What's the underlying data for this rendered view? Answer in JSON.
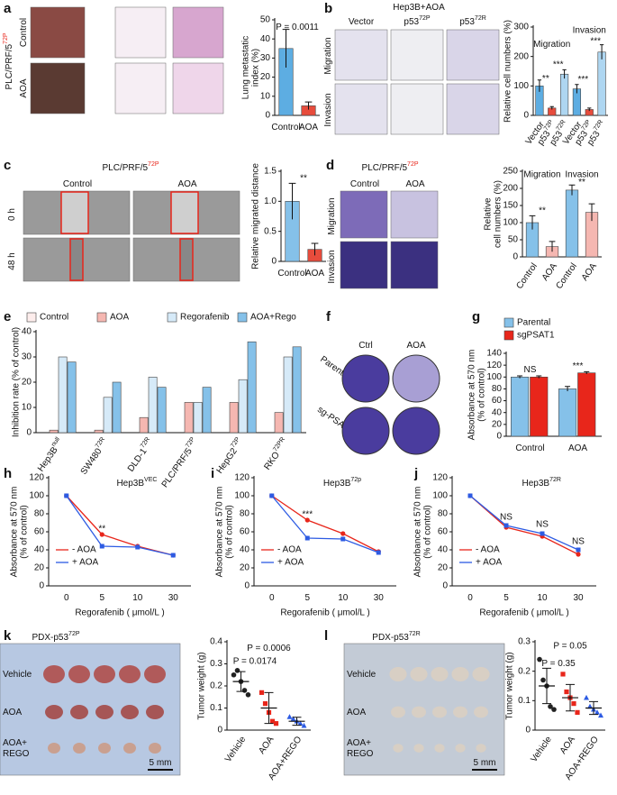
{
  "letters": [
    "a",
    "b",
    "c",
    "d",
    "e",
    "f",
    "g",
    "h",
    "i",
    "j",
    "k",
    "l"
  ],
  "images": {
    "a": {
      "title": "PLC/PRF/5",
      "sup": "72P",
      "rows": [
        "Control",
        "AOA"
      ]
    },
    "b": {
      "title": "Hep3B+AOA",
      "cols": [
        "Vector",
        "p53",
        "p53"
      ],
      "col_sups": [
        null,
        "72P",
        "72R"
      ],
      "rows": [
        "Migration",
        "Invasion"
      ]
    },
    "c": {
      "title": "PLC/PRF/5",
      "sup": "72P",
      "cols": [
        "Control",
        "AOA"
      ],
      "rows": [
        "0 h",
        "48 h"
      ]
    },
    "d": {
      "title": "PLC/PRF/5",
      "sup": "72P",
      "cols": [
        "Control",
        "AOA"
      ],
      "rows": [
        "Migration",
        "Invasion"
      ]
    },
    "f": {
      "cols": [
        "Ctrl",
        "AOA"
      ],
      "rows": [
        "Parental",
        "sg-PSAT1"
      ]
    },
    "k": {
      "title": "PDX-p53",
      "sup": "72P",
      "rows": [
        "Vehicle",
        "AOA",
        "AOA+",
        "REGO"
      ],
      "scale": "5 mm"
    },
    "l": {
      "title": "PDX-p53",
      "sup": "72R",
      "rows": [
        "Vehicle",
        "AOA",
        "AOA+",
        "REGO"
      ],
      "scale": "5 mm"
    }
  },
  "chart_data": [
    {
      "type": "bar",
      "ylabel": [
        "Lung metastatic",
        "index (%)"
      ],
      "categories": [
        "Control",
        "AOA"
      ],
      "values": [
        35,
        5
      ],
      "errors": [
        10,
        2
      ],
      "colors": [
        "#5dade2",
        "#e74c3c"
      ],
      "ylim": [
        0,
        50
      ],
      "yticks": [
        0,
        10,
        20,
        30,
        40,
        50
      ],
      "annotations": [
        "P = 0.0011"
      ]
    },
    {
      "type": "bar",
      "ylabel": [
        "Relative cell numbers (%)"
      ],
      "categories": [
        "Vector",
        "p53",
        "p53",
        "Vector",
        "p53",
        "p53"
      ],
      "category_sups": [
        null,
        "72P",
        "72R",
        null,
        "72P",
        "72R"
      ],
      "values": [
        100,
        25,
        140,
        90,
        20,
        215
      ],
      "errors": [
        20,
        5,
        15,
        15,
        5,
        25
      ],
      "colors": [
        "#5dade2",
        "#e74c3c",
        "#aed6f1",
        "#5dade2",
        "#e74c3c",
        "#aed6f1"
      ],
      "ylim": [
        0,
        300
      ],
      "yticks": [
        0,
        100,
        200,
        300
      ],
      "annotations": [
        "Migration",
        "Invasion",
        "**",
        "***",
        "***",
        "***"
      ]
    },
    {
      "type": "bar",
      "ylabel": [
        "Relative migrated distance"
      ],
      "categories": [
        "Control",
        "AOA"
      ],
      "values": [
        1,
        0.2
      ],
      "errors": [
        0.3,
        0.1
      ],
      "colors": [
        "#85c1e9",
        "#e74c3c"
      ],
      "ylim": [
        0,
        1.5
      ],
      "yticks": [
        0,
        0.5,
        {
          "value": 1,
          "label": "1.0"
        },
        1.5
      ],
      "annotations": [
        "**"
      ]
    },
    {
      "type": "bar",
      "ylabel": [
        "Relative",
        "cell numbers (%)"
      ],
      "categories": [
        "Control",
        "AOA",
        "Control",
        "AOA"
      ],
      "values": [
        100,
        30,
        195,
        130
      ],
      "errors": [
        20,
        15,
        15,
        25
      ],
      "colors": [
        "#85c1e9",
        "#f5b7b1",
        "#85c1e9",
        "#f5b7b1"
      ],
      "ylim": [
        0,
        250
      ],
      "yticks": [
        0,
        50,
        100,
        150,
        200,
        250
      ],
      "annotations": [
        "Migration",
        "Invasion",
        "**",
        "**"
      ]
    },
    {
      "type": "bar",
      "ylabel": [
        "Inhibition rate (% of control)"
      ],
      "categories": [
        "Hep3B",
        "SW480",
        "DLD-1",
        "PLC/PRF/5",
        "HepG2",
        "RKO"
      ],
      "category_sups": [
        "null",
        "72R",
        "72R",
        "72P",
        "72P",
        "72PR"
      ],
      "series": [
        {
          "name": "Control",
          "color": "#fdedec",
          "values": [
            0,
            0,
            0,
            0,
            0,
            0
          ]
        },
        {
          "name": "AOA",
          "color": "#f5b7b1",
          "values": [
            1,
            1,
            6,
            12,
            12,
            8
          ]
        },
        {
          "name": "Regorafenib",
          "color": "#d6eaf8",
          "values": [
            30,
            14,
            22,
            12,
            21,
            30
          ]
        },
        {
          "name": "AOA+Rego",
          "color": "#85c1e9",
          "values": [
            28,
            20,
            18,
            18,
            36,
            34
          ]
        }
      ],
      "ylim": [
        0,
        40
      ],
      "yticks": [
        0,
        10,
        20,
        30,
        40
      ]
    },
    {
      "type": "bar",
      "ylabel": [
        "Absorbance at 570 nm",
        "(% of control)"
      ],
      "categories": [
        "Control",
        "AOA"
      ],
      "series": [
        {
          "name": "Parental",
          "color": "#85c1e9",
          "values": [
            100,
            80
          ],
          "errors": [
            2,
            4
          ]
        },
        {
          "name": "sgPSAT1",
          "color": "#e8261b",
          "values": [
            100,
            107
          ],
          "errors": [
            2,
            2
          ]
        }
      ],
      "ylim": [
        0,
        140
      ],
      "yticks": [
        0,
        20,
        40,
        60,
        80,
        100,
        120,
        140
      ],
      "annotations": [
        "NS",
        "***"
      ]
    },
    {
      "type": "line",
      "title": "Hep3B",
      "title_sup": "VEC",
      "xlabel": "Regorafenib ( μmol/L )",
      "ylabel": [
        "Absorbance at 570 nm",
        "(% of control)"
      ],
      "categories": [
        "0",
        "5",
        "10",
        "30"
      ],
      "series": [
        {
          "name": "- AOA",
          "color": "#e8261b",
          "values": [
            100,
            57,
            44,
            34
          ]
        },
        {
          "name": "+ AOA",
          "color": "#2d5be3",
          "values": [
            100,
            44,
            43,
            34
          ]
        }
      ],
      "ylim": [
        0,
        120
      ],
      "yticks": [
        0,
        20,
        40,
        60,
        80,
        100,
        120
      ],
      "annotations": [
        "**"
      ]
    },
    {
      "type": "line",
      "title": "Hep3B",
      "title_sup": "72p",
      "xlabel": "Regorafenib ( μmol/L )",
      "ylabel": [
        "Absorbance at 570 nm",
        "(% of control)"
      ],
      "categories": [
        "0",
        "5",
        "10",
        "30"
      ],
      "series": [
        {
          "name": "- AOA",
          "color": "#e8261b",
          "values": [
            100,
            73,
            58,
            38
          ]
        },
        {
          "name": "+ AOA",
          "color": "#2d5be3",
          "values": [
            100,
            53,
            52,
            37
          ]
        }
      ],
      "ylim": [
        0,
        120
      ],
      "yticks": [
        0,
        20,
        40,
        60,
        80,
        100,
        120
      ],
      "annotations": [
        "***"
      ]
    },
    {
      "type": "line",
      "title": "Hep3B",
      "title_sup": "72R",
      "xlabel": "Regorafenib ( μmol/L )",
      "ylabel": [
        "Absorbance at 570 nm",
        "(% of control)"
      ],
      "categories": [
        "0",
        "5",
        "10",
        "30"
      ],
      "series": [
        {
          "name": "- AOA",
          "color": "#e8261b",
          "values": [
            100,
            65,
            55,
            35
          ]
        },
        {
          "name": "+ AOA",
          "color": "#2d5be3",
          "values": [
            100,
            67,
            58,
            40
          ]
        }
      ],
      "ylim": [
        0,
        120
      ],
      "yticks": [
        0,
        20,
        40,
        60,
        80,
        100,
        120
      ],
      "annotations": [
        "NS",
        "NS",
        "NS"
      ]
    },
    {
      "type": "dot",
      "ylabel": [
        "Tumor weight (g)"
      ],
      "categories": [
        "Vehicle",
        "AOA",
        "AOA+REGO"
      ],
      "colors": [
        "#222222",
        "#e8261b",
        "#2d5be3"
      ],
      "points": [
        [
          0.25,
          0.27,
          0.22,
          0.18,
          0.16
        ],
        [
          0.17,
          0.12,
          0.08,
          0.04,
          0.03
        ],
        [
          0.06,
          0.05,
          0.04,
          0.03,
          0.02
        ]
      ],
      "values": [
        0.22,
        0.1,
        0.04
      ],
      "errors": [
        0.045,
        0.07,
        0.018
      ],
      "ylim": [
        0,
        0.4
      ],
      "yticks": [
        0,
        0.1,
        0.2,
        0.3,
        0.4
      ],
      "annotations": [
        "P = 0.0174",
        "P = 0.0006"
      ]
    },
    {
      "type": "dot",
      "ylabel": [
        "Tumor weight (g)"
      ],
      "categories": [
        "Vehicle",
        "AOA",
        "AOA+REGO"
      ],
      "colors": [
        "#222222",
        "#e8261b",
        "#2d5be3"
      ],
      "points": [
        [
          0.24,
          0.17,
          0.15,
          0.08,
          0.07
        ],
        [
          0.19,
          0.13,
          0.11,
          0.09,
          0.06
        ],
        [
          0.11,
          0.08,
          0.07,
          0.06,
          0.05
        ]
      ],
      "values": [
        0.15,
        0.11,
        0.075
      ],
      "errors": [
        0.06,
        0.045,
        0.022
      ],
      "ylim": [
        0,
        0.3
      ],
      "yticks": [
        0,
        0.1,
        0.2,
        0.3
      ],
      "annotations": [
        "P = 0.35",
        "P = 0.05"
      ]
    }
  ]
}
